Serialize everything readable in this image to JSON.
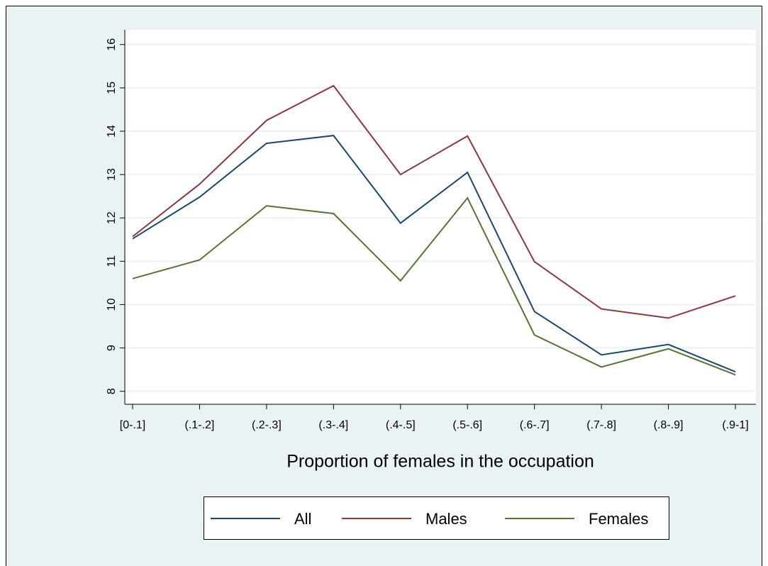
{
  "chart_data": {
    "type": "line",
    "x_label": "Proportion of females in the occupation",
    "categories": [
      "[0-.1]",
      "(.1-.2]",
      "(.2-.3]",
      "(.3-.4]",
      "(.4-.5]",
      "(.5-.6]",
      "(.6-.7]",
      "(.7-.8]",
      "(.8-.9]",
      "(.9-1]"
    ],
    "series": [
      {
        "name": "All",
        "color": "#1a476f",
        "values": [
          11.52,
          12.48,
          13.72,
          13.9,
          11.88,
          13.05,
          9.84,
          8.84,
          9.08,
          8.45
        ]
      },
      {
        "name": "Males",
        "color": "#90353b",
        "values": [
          11.57,
          12.78,
          14.25,
          15.05,
          13.0,
          13.89,
          10.99,
          9.9,
          9.69,
          10.2
        ]
      },
      {
        "name": "Females",
        "color": "#55752f",
        "values": [
          10.6,
          11.03,
          12.28,
          12.1,
          10.55,
          12.46,
          9.3,
          8.56,
          8.98,
          8.38
        ]
      }
    ],
    "ylim": [
      7.7,
      16.34
    ],
    "yticks": [
      8,
      9,
      10,
      11,
      12,
      13,
      14,
      15,
      16
    ],
    "grid": true,
    "legend": "bottom"
  }
}
